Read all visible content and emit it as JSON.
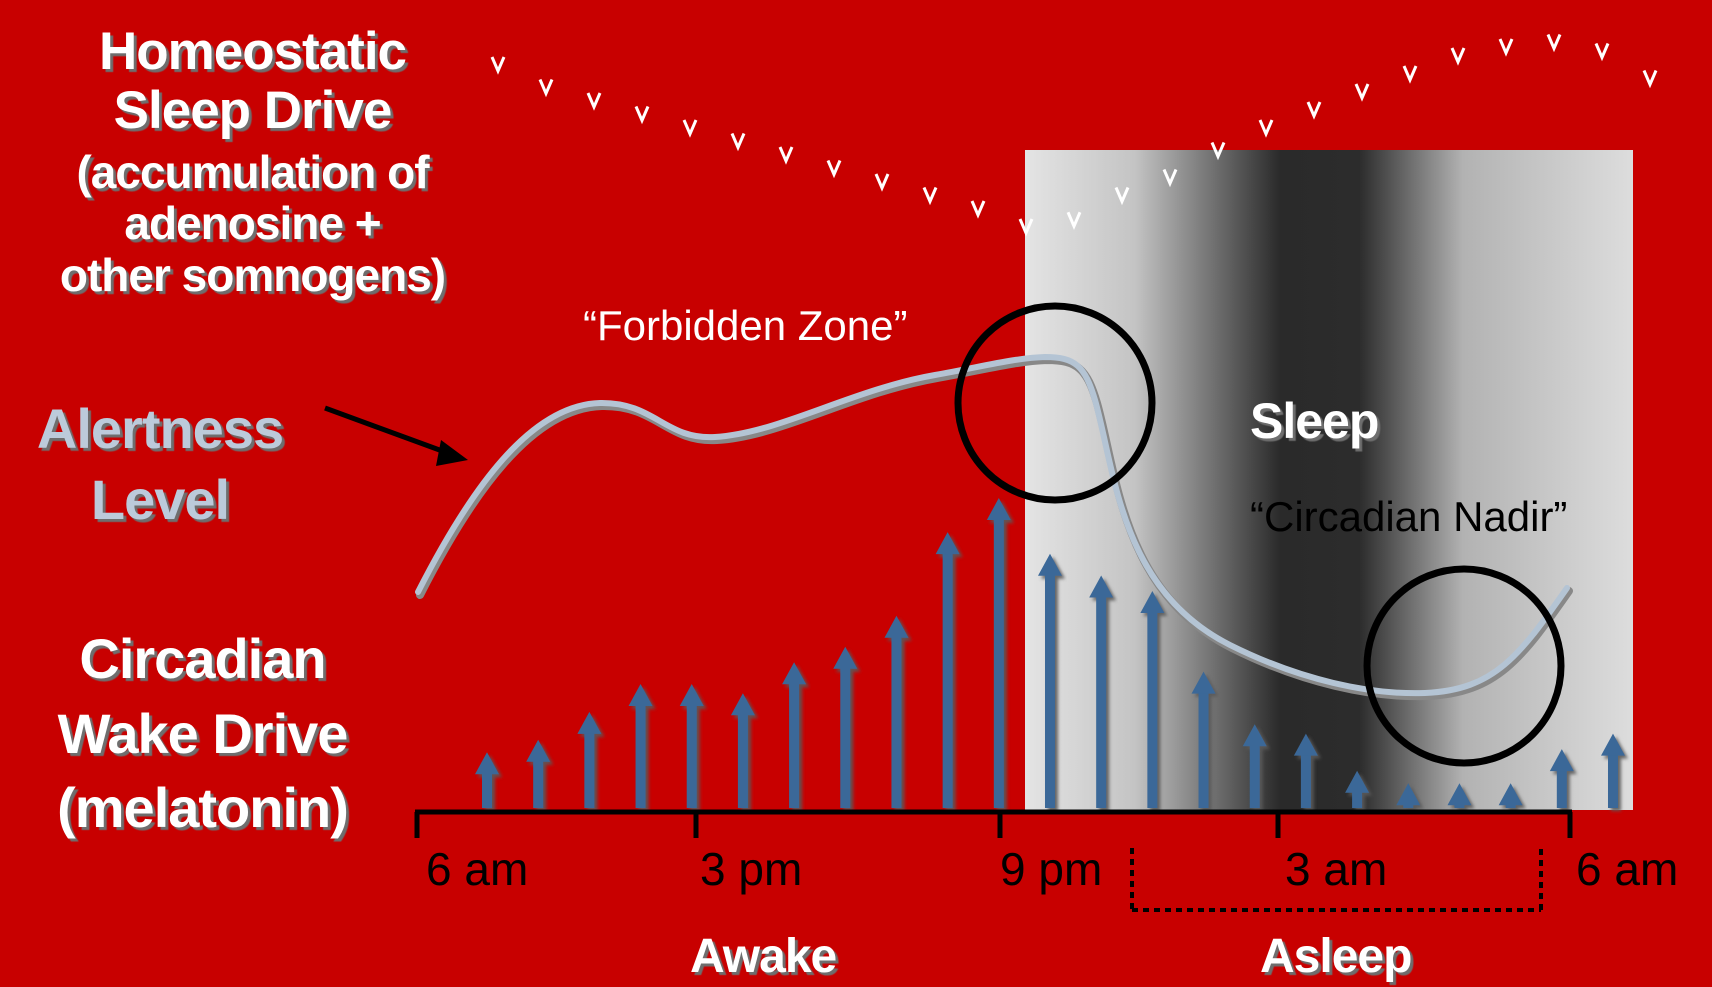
{
  "labels": {
    "homeostatic_line1": "Homeostatic",
    "homeostatic_line2": "Sleep  Drive",
    "homeostatic_line3": "(accumulation of",
    "homeostatic_line4": "adenosine +",
    "homeostatic_line5": "other somnogens)",
    "alertness_line1": "Alertness",
    "alertness_line2": "Level",
    "circadian_line1": "Circadian",
    "circadian_line2": "Wake Drive",
    "circadian_line3": "(melatonin)",
    "forbidden_zone": "“Forbidden Zone”",
    "sleep": "Sleep",
    "circadian_nadir": "“Circadian Nadir”",
    "awake": "Awake",
    "asleep": "Asleep"
  },
  "time_axis": [
    "6 am",
    "3 pm",
    "9 pm",
    "3 am",
    "6 am"
  ],
  "colors": {
    "background": "#c80000",
    "wake_arrow": "#3a6898",
    "alertness_curve": "#b4c4d4",
    "circle": "#000000"
  },
  "sleep_drive_arrows": [
    {
      "length": 0.28
    },
    {
      "length": 0.38
    },
    {
      "length": 0.44
    },
    {
      "length": 0.5
    },
    {
      "length": 0.56
    },
    {
      "length": 0.62
    },
    {
      "length": 0.68
    },
    {
      "length": 0.74
    },
    {
      "length": 0.8
    },
    {
      "length": 0.86
    },
    {
      "length": 0.92
    },
    {
      "length": 1.0
    },
    {
      "length": 0.97
    },
    {
      "length": 0.86
    },
    {
      "length": 0.78
    },
    {
      "length": 0.66
    },
    {
      "length": 0.56
    },
    {
      "length": 0.48
    },
    {
      "length": 0.4
    },
    {
      "length": 0.32
    },
    {
      "length": 0.24
    },
    {
      "length": 0.2
    },
    {
      "length": 0.18
    },
    {
      "length": 0.22
    },
    {
      "length": 0.34
    }
  ],
  "wake_drive_arrows": [
    {
      "level": 0.18
    },
    {
      "level": 0.22
    },
    {
      "level": 0.31
    },
    {
      "level": 0.4
    },
    {
      "level": 0.4
    },
    {
      "level": 0.37
    },
    {
      "level": 0.47
    },
    {
      "level": 0.52
    },
    {
      "level": 0.62
    },
    {
      "level": 0.89
    },
    {
      "level": 1.0
    },
    {
      "level": 0.82
    },
    {
      "level": 0.75
    },
    {
      "level": 0.7
    },
    {
      "level": 0.44
    },
    {
      "level": 0.27
    },
    {
      "level": 0.24
    },
    {
      "level": 0.12
    },
    {
      "level": 0.08
    },
    {
      "level": 0.08
    },
    {
      "level": 0.08
    },
    {
      "level": 0.19
    },
    {
      "level": 0.24
    }
  ]
}
